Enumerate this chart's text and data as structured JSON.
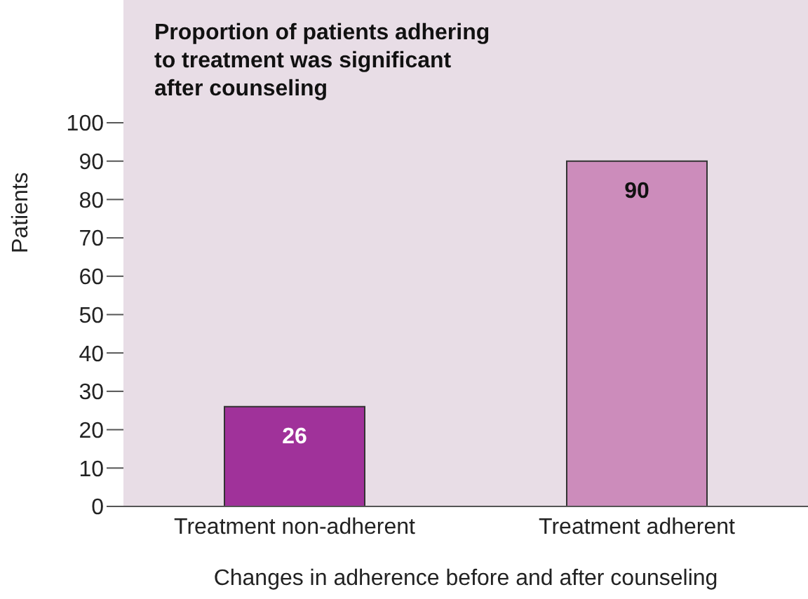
{
  "chart_data": {
    "type": "bar",
    "title": "Proportion of patients adhering to treatment was significant after counseling",
    "xlabel": "Changes in adherence before and after counseling",
    "ylabel": "Patients",
    "categories": [
      "Treatment non-adherent",
      "Treatment adherent"
    ],
    "values": [
      26,
      90
    ],
    "colors": [
      "#a0329a",
      "#cc8cbb"
    ],
    "ylim": [
      0,
      132
    ],
    "yticks": [
      0,
      10,
      20,
      30,
      40,
      50,
      60,
      70,
      80,
      90,
      100
    ],
    "data_labels": true,
    "grid": false
  }
}
